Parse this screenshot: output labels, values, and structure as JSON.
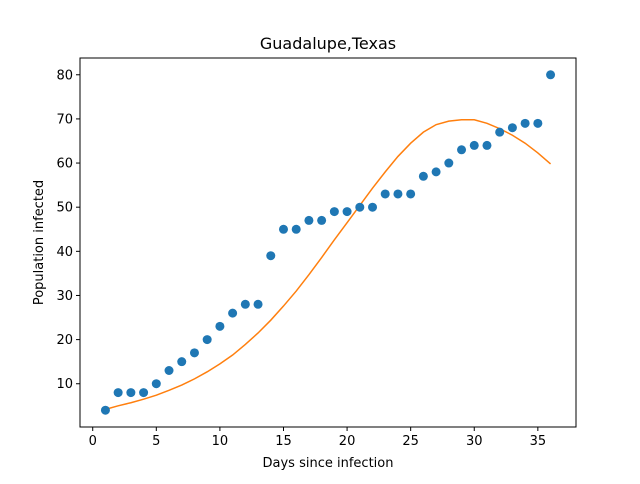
{
  "chart_data": {
    "type": "scatter",
    "title": "Guadalupe,Texas",
    "xlabel": "Days since infection",
    "ylabel": "Population infected",
    "xlim": [
      -1,
      38
    ],
    "ylim": [
      0.2,
      83.8
    ],
    "xticks": [
      0,
      5,
      10,
      15,
      20,
      25,
      30,
      35
    ],
    "yticks": [
      10,
      20,
      30,
      40,
      50,
      60,
      70,
      80
    ],
    "grid": false,
    "colors": {
      "points": "#1f77b4",
      "fit": "#ff7f0e"
    },
    "series": [
      {
        "kind": "scatter",
        "x": [
          1,
          2,
          3,
          4,
          5,
          6,
          7,
          8,
          9,
          10,
          11,
          12,
          13,
          14,
          15,
          16,
          17,
          18,
          19,
          20,
          21,
          22,
          23,
          24,
          25,
          26,
          27,
          28,
          29,
          30,
          31,
          32,
          33,
          34,
          35,
          36
        ],
        "y": [
          4,
          8,
          8,
          8,
          10,
          13,
          15,
          17,
          20,
          23,
          26,
          28,
          28,
          39,
          45,
          45,
          47,
          47,
          49,
          49,
          50,
          50,
          53,
          53,
          53,
          57,
          58,
          60,
          63,
          64,
          64,
          67,
          68,
          69,
          69,
          80
        ]
      },
      {
        "kind": "line",
        "x": [
          1,
          2,
          3,
          4,
          5,
          6,
          7,
          8,
          9,
          10,
          11,
          12,
          13,
          14,
          15,
          16,
          17,
          18,
          19,
          20,
          21,
          22,
          23,
          24,
          25,
          26,
          27,
          28,
          29,
          30,
          31,
          32,
          33,
          34,
          35,
          36
        ],
        "y": [
          4.2,
          5.0,
          5.7,
          6.5,
          7.4,
          8.5,
          9.7,
          11.1,
          12.7,
          14.5,
          16.5,
          18.9,
          21.5,
          24.4,
          27.6,
          31.0,
          34.7,
          38.6,
          42.6,
          46.5,
          50.4,
          54.3,
          58.0,
          61.5,
          64.5,
          67.0,
          68.7,
          69.5,
          69.8,
          69.8,
          69.0,
          67.8,
          66.3,
          64.5,
          62.3,
          59.8
        ]
      }
    ]
  }
}
